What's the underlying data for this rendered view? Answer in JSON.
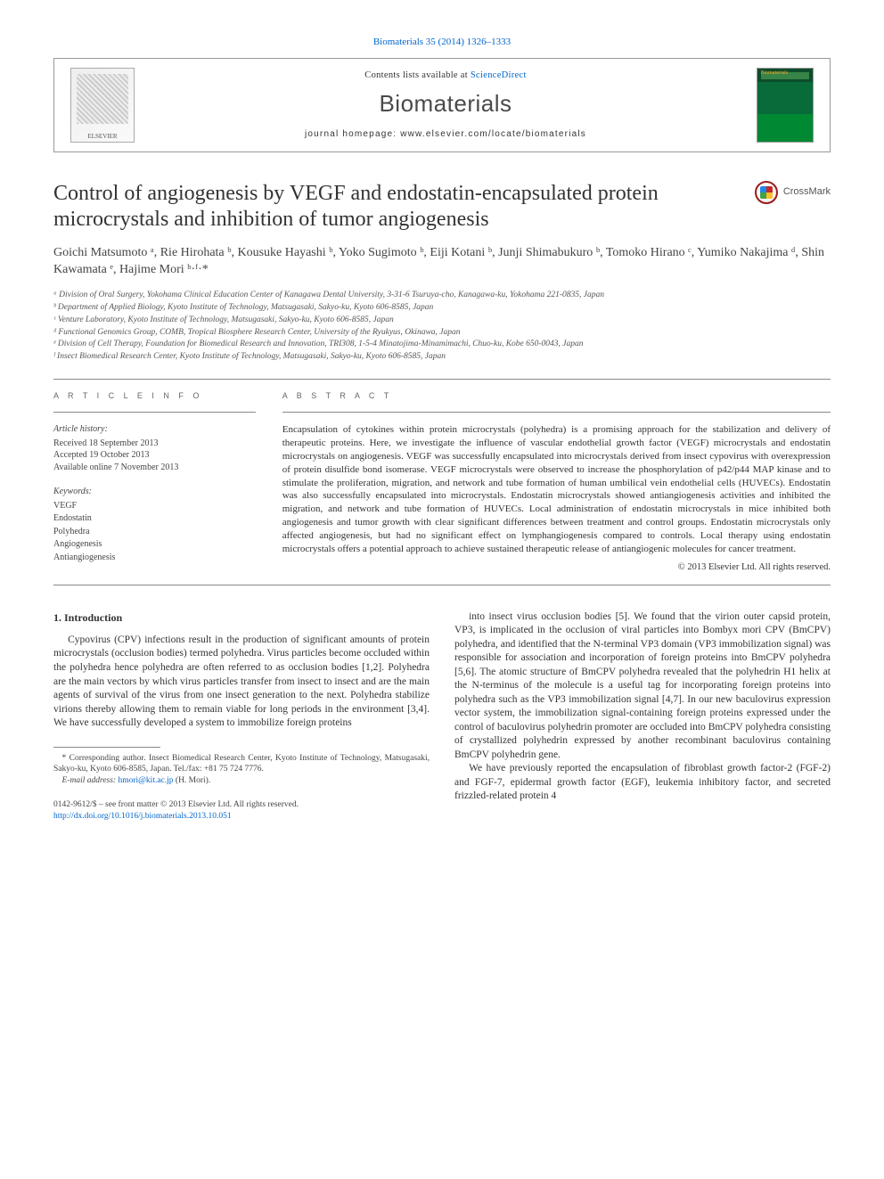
{
  "citation_line": "Biomaterials 35 (2014) 1326–1333",
  "header": {
    "publisher_name": "ELSEVIER",
    "contents_at": "Contents lists available at ",
    "contents_link": "ScienceDirect",
    "journal_name": "Biomaterials",
    "homepage_label": "journal homepage: ",
    "homepage_url": "www.elsevier.com/locate/biomaterials"
  },
  "crossmark_label": "CrossMark",
  "title": "Control of angiogenesis by VEGF and endostatin-encapsulated protein microcrystals and inhibition of tumor angiogenesis",
  "authors_html": "Goichi Matsumoto ᵃ, Rie Hirohata ᵇ, Kousuke Hayashi ᵇ, Yoko Sugimoto ᵇ, Eiji Kotani ᵇ, Junji Shimabukuro ᵇ, Tomoko Hirano ᶜ, Yumiko Nakajima ᵈ, Shin Kawamata ᵉ, Hajime Mori ᵇ·ᶠ·*",
  "affiliations": [
    "ᵃ Division of Oral Surgery, Yokohama Clinical Education Center of Kanagawa Dental University, 3-31-6 Tsuruya-cho, Kanagawa-ku, Yokohama 221-0835, Japan",
    "ᵇ Department of Applied Biology, Kyoto Institute of Technology, Matsugasaki, Sakyo-ku, Kyoto 606-8585, Japan",
    "ᶜ Venture Laboratory, Kyoto Institute of Technology, Matsugasaki, Sakyo-ku, Kyoto 606-8585, Japan",
    "ᵈ Functional Genomics Group, COMB, Tropical Biosphere Research Center, University of the Ryukyus, Okinawa, Japan",
    "ᵉ Division of Cell Therapy, Foundation for Biomedical Research and Innovation, TRI308, 1-5-4 Minatojima-Minamimachi, Chuo-ku, Kobe 650-0043, Japan",
    "ᶠ Insect Biomedical Research Center, Kyoto Institute of Technology, Matsugasaki, Sakyo-ku, Kyoto 606-8585, Japan"
  ],
  "article_info": {
    "heading": "A R T I C L E   I N F O",
    "history_label": "Article history:",
    "received": "Received 18 September 2013",
    "accepted": "Accepted 19 October 2013",
    "online": "Available online 7 November 2013",
    "keywords_label": "Keywords:",
    "keywords": [
      "VEGF",
      "Endostatin",
      "Polyhedra",
      "Angiogenesis",
      "Antiangiogenesis"
    ]
  },
  "abstract": {
    "heading": "A B S T R A C T",
    "text": "Encapsulation of cytokines within protein microcrystals (polyhedra) is a promising approach for the stabilization and delivery of therapeutic proteins. Here, we investigate the influence of vascular endothelial growth factor (VEGF) microcrystals and endostatin microcrystals on angiogenesis. VEGF was successfully encapsulated into microcrystals derived from insect cypovirus with overexpression of protein disulfide bond isomerase. VEGF microcrystals were observed to increase the phosphorylation of p42/p44 MAP kinase and to stimulate the proliferation, migration, and network and tube formation of human umbilical vein endothelial cells (HUVECs). Endostatin was also successfully encapsulated into microcrystals. Endostatin microcrystals showed antiangiogenesis activities and inhibited the migration, and network and tube formation of HUVECs. Local administration of endostatin microcrystals in mice inhibited both angiogenesis and tumor growth with clear significant differences between treatment and control groups. Endostatin microcrystals only affected angiogenesis, but had no significant effect on lymphangiogenesis compared to controls. Local therapy using endostatin microcrystals offers a potential approach to achieve sustained therapeutic release of antiangiogenic molecules for cancer treatment.",
    "copyright": "© 2013 Elsevier Ltd. All rights reserved."
  },
  "intro": {
    "heading": "1. Introduction",
    "p1": "Cypovirus (CPV) infections result in the production of significant amounts of protein microcrystals (occlusion bodies) termed polyhedra. Virus particles become occluded within the polyhedra hence polyhedra are often referred to as occlusion bodies [1,2]. Polyhedra are the main vectors by which virus particles transfer from insect to insect and are the main agents of survival of the virus from one insect generation to the next. Polyhedra stabilize virions thereby allowing them to remain viable for long periods in the environment [3,4]. We have successfully developed a system to immobilize foreign proteins",
    "p2": "into insect virus occlusion bodies [5]. We found that the virion outer capsid protein, VP3, is implicated in the occlusion of viral particles into Bombyx mori CPV (BmCPV) polyhedra, and identified that the N-terminal VP3 domain (VP3 immobilization signal) was responsible for association and incorporation of foreign proteins into BmCPV polyhedra [5,6]. The atomic structure of BmCPV polyhedra revealed that the polyhedrin H1 helix at the N-terminus of the molecule is a useful tag for incorporating foreign proteins into polyhedra such as the VP3 immobilization signal [4,7]. In our new baculovirus expression vector system, the immobilization signal-containing foreign proteins expressed under the control of baculovirus polyhedrin promoter are occluded into BmCPV polyhedra consisting of crystallized polyhedrin expressed by another recombinant baculovirus containing BmCPV polyhedrin gene.",
    "p3": "We have previously reported the encapsulation of fibroblast growth factor-2 (FGF-2) and FGF-7, epidermal growth factor (EGF), leukemia inhibitory factor, and secreted frizzled-related protein 4"
  },
  "footnotes": {
    "corresponding": "* Corresponding author. Insect Biomedical Research Center, Kyoto Institute of Technology, Matsugasaki, Sakyo-ku, Kyoto 606-8585, Japan. Tel./fax: +81 75 724 7776.",
    "email_label": "E-mail address: ",
    "email": "hmori@kit.ac.jp",
    "email_who": " (H. Mori)."
  },
  "doi_block": {
    "front_matter": "0142-9612/$ – see front matter © 2013 Elsevier Ltd. All rights reserved.",
    "doi": "http://dx.doi.org/10.1016/j.biomaterials.2013.10.051"
  },
  "refs": {
    "r12": "[1,2]",
    "r34": "[3,4]",
    "r5": "[5]",
    "r56": "[5,6]",
    "r47": "[4,7]"
  },
  "colors": {
    "link": "#0066cc",
    "text": "#333333",
    "border": "#888888"
  }
}
